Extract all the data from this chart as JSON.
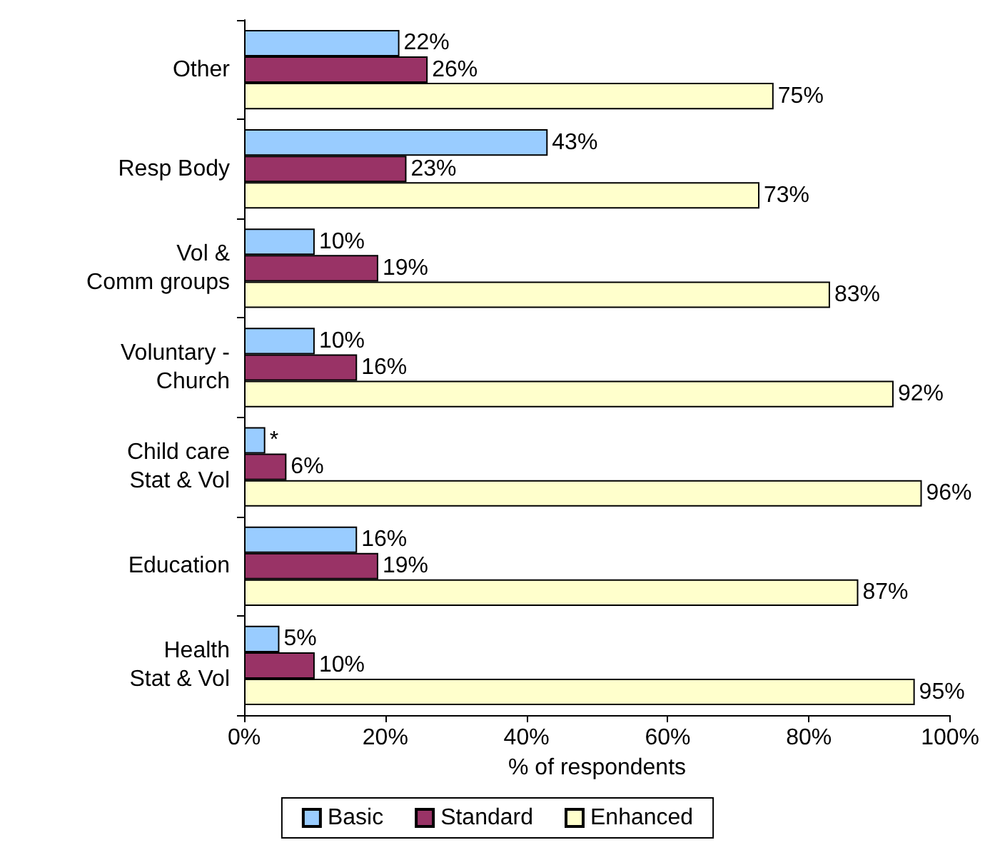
{
  "chart_data": {
    "type": "bar",
    "orientation": "horizontal",
    "xlabel": "% of respondents",
    "categories": [
      "Other",
      "Resp Body",
      "Vol &\nComm groups",
      "Voluntary -\nChurch",
      "Child care\nStat & Vol",
      "Education",
      "Health\nStat & Vol"
    ],
    "series": [
      {
        "name": "Basic",
        "color": "#99ccff",
        "values": [
          22,
          43,
          10,
          10,
          3,
          16,
          5
        ],
        "value_labels": [
          "22%",
          "43%",
          "10%",
          "10%",
          "*",
          "16%",
          "5%"
        ]
      },
      {
        "name": "Standard",
        "color": "#993366",
        "values": [
          26,
          23,
          19,
          16,
          6,
          19,
          10
        ],
        "value_labels": [
          "26%",
          "23%",
          "19%",
          "16%",
          "6%",
          "19%",
          "10%"
        ]
      },
      {
        "name": "Enhanced",
        "color": "#ffffcc",
        "values": [
          75,
          73,
          83,
          92,
          96,
          87,
          95
        ],
        "value_labels": [
          "75%",
          "73%",
          "83%",
          "92%",
          "96%",
          "87%",
          "95%"
        ]
      }
    ],
    "xlim": [
      0,
      100
    ],
    "xticks": [
      {
        "value": 0,
        "label": "0%"
      },
      {
        "value": 20,
        "label": "20%"
      },
      {
        "value": 40,
        "label": "40%"
      },
      {
        "value": 60,
        "label": "60%"
      },
      {
        "value": 80,
        "label": "80%"
      },
      {
        "value": 100,
        "label": "100%"
      }
    ],
    "legend": "bottom",
    "grid": false
  }
}
